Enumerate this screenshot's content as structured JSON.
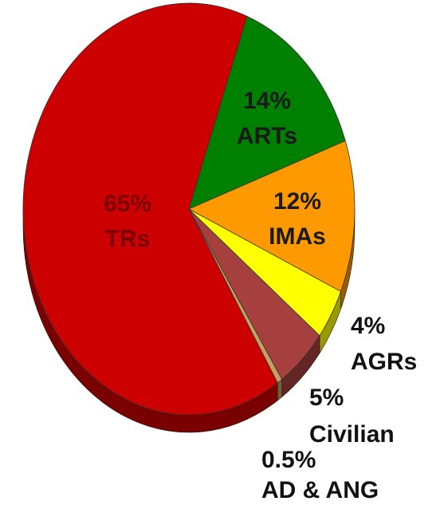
{
  "chart_data": {
    "type": "pie",
    "categories": [
      "ARTs",
      "IMAs",
      "AGRs",
      "Civilian",
      "AD & ANG",
      "TRs"
    ],
    "values": [
      14,
      12,
      4,
      5,
      0.5,
      65
    ],
    "value_labels": [
      "14%",
      "12%",
      "4%",
      "5%",
      "0.5%",
      "65%"
    ],
    "colors": [
      "#008000",
      "#ff9900",
      "#ffff00",
      "#a5403e",
      "#c8a060",
      "#cc0000"
    ]
  }
}
